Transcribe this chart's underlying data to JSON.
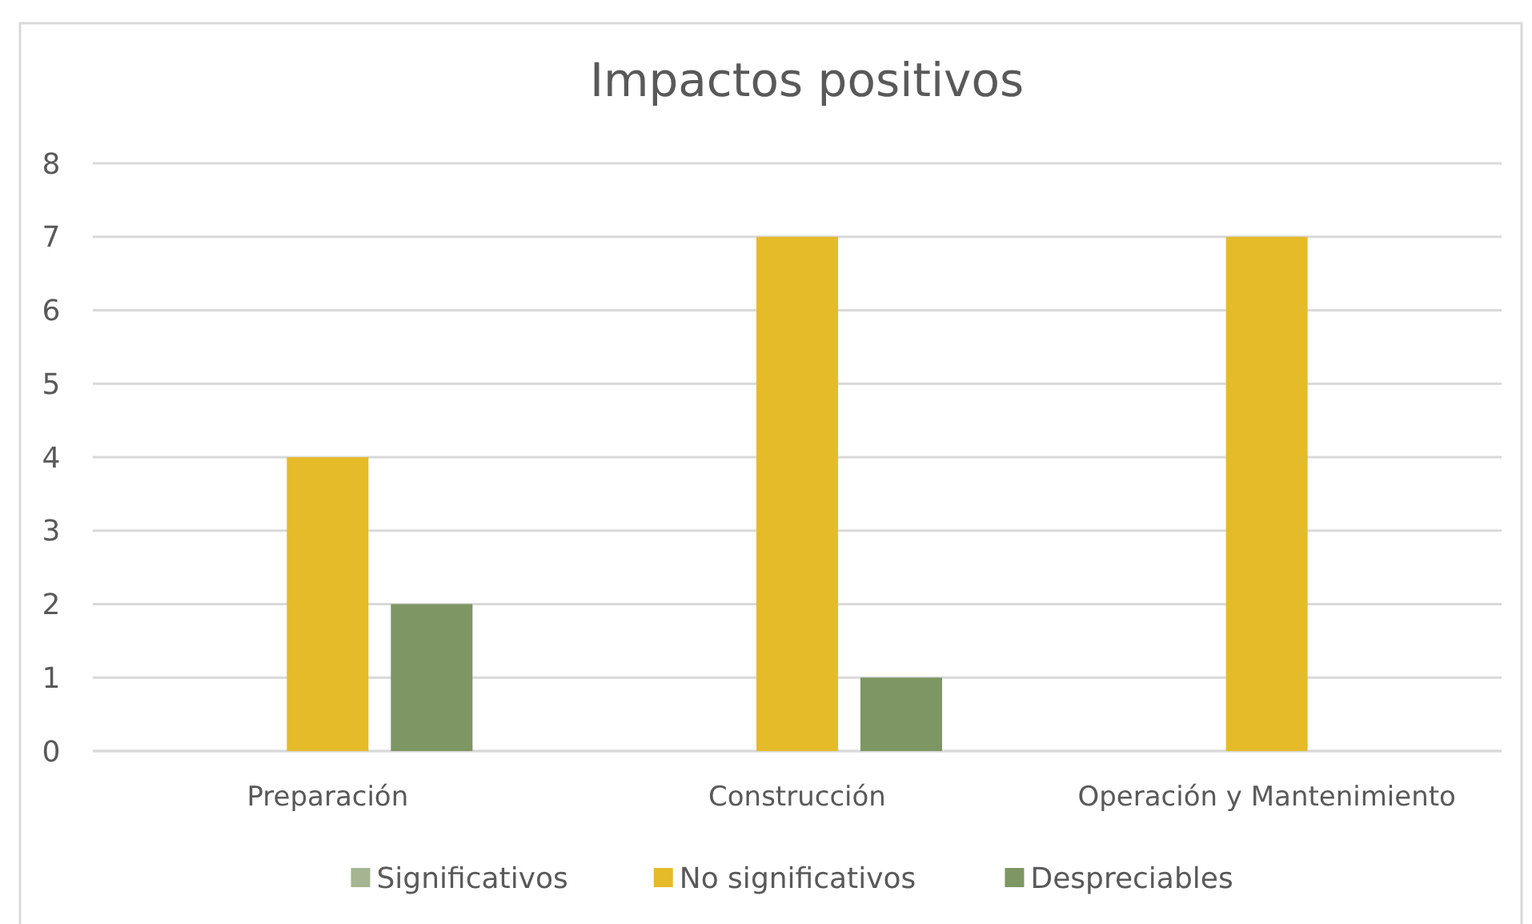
{
  "chart_data": {
    "type": "bar",
    "title": "Impactos positivos",
    "categories": [
      "Preparación",
      "Construcción",
      "Operación y Mantenimiento"
    ],
    "series": [
      {
        "name": "Significativos",
        "color": "#a5b592",
        "values": [
          0,
          0,
          0
        ]
      },
      {
        "name": "No significativos",
        "color": "#e6bb29",
        "values": [
          4,
          7,
          7
        ]
      },
      {
        "name": "Despreciables",
        "color": "#7d9663",
        "values": [
          2,
          1,
          0
        ]
      }
    ],
    "ylim": [
      0,
      8
    ],
    "yticks": [
      0,
      1,
      2,
      3,
      4,
      5,
      6,
      7,
      8
    ],
    "grid": "y",
    "legend": "bottom"
  }
}
